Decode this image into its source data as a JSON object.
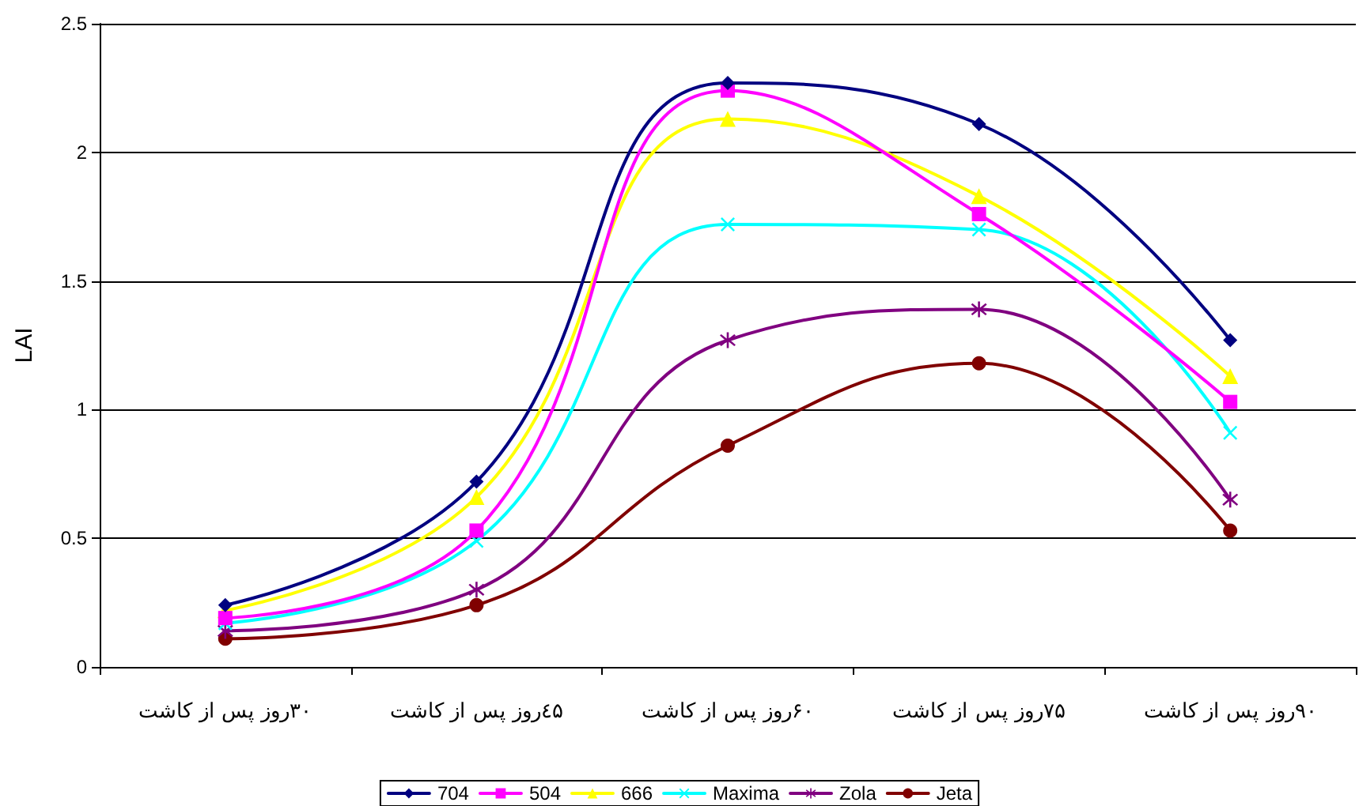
{
  "chart_data": {
    "type": "line",
    "ylabel": "LAI",
    "categories": [
      "۳۰روز پس از کاشت",
      "٤۵روز پس از کاشت",
      "۶۰روز پس از کاشت",
      "۷۵روز پس از کاشت",
      "۹۰روز پس از کاشت"
    ],
    "series": [
      {
        "name": "704",
        "color": "#000080",
        "marker": "diamond",
        "values": [
          0.24,
          0.72,
          2.27,
          2.11,
          1.27
        ]
      },
      {
        "name": "504",
        "color": "#ff00ff",
        "marker": "square",
        "values": [
          0.19,
          0.53,
          2.24,
          1.76,
          1.03
        ]
      },
      {
        "name": "666",
        "color": "#ffff00",
        "marker": "triangle",
        "values": [
          0.22,
          0.66,
          2.13,
          1.83,
          1.13
        ]
      },
      {
        "name": "Maxima",
        "color": "#00ffff",
        "marker": "cross",
        "values": [
          0.17,
          0.49,
          1.72,
          1.7,
          0.91
        ]
      },
      {
        "name": "Zola",
        "color": "#800080",
        "marker": "star",
        "values": [
          0.14,
          0.3,
          1.27,
          1.39,
          0.65
        ]
      },
      {
        "name": "Jeta",
        "color": "#800000",
        "marker": "circle",
        "values": [
          0.11,
          0.24,
          0.86,
          1.18,
          0.53
        ]
      }
    ],
    "ylim": [
      0,
      2.5
    ],
    "yticks": [
      0,
      0.5,
      1,
      1.5,
      2,
      2.5
    ],
    "grid": "y",
    "legend": "bottom",
    "line_style": "solid"
  }
}
